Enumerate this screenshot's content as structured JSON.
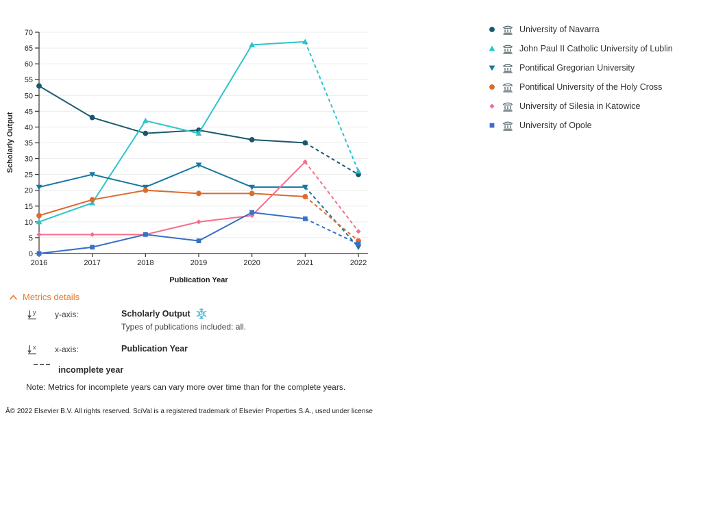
{
  "chart_data": {
    "type": "line",
    "x": [
      2016,
      2017,
      2018,
      2019,
      2020,
      2021,
      2022
    ],
    "xlabel": "Publication Year",
    "ylabel": "Scholarly Output",
    "ylim": [
      0,
      70
    ],
    "ytick_step": 5,
    "grid": "horizontal",
    "legend_position": "right",
    "incomplete_from_index": 5,
    "series": [
      {
        "name": "University of Navarra",
        "marker": "circle",
        "color": "#19586C",
        "values": [
          53,
          43,
          38,
          39,
          36,
          35,
          25
        ]
      },
      {
        "name": "John Paul II Catholic University of Lublin",
        "marker": "triangle-up",
        "color": "#2BC4CD",
        "values": [
          10,
          16,
          42,
          38,
          66,
          67,
          26
        ]
      },
      {
        "name": "Pontifical Gregorian University",
        "marker": "triangle-down",
        "color": "#1778A0",
        "values": [
          21,
          25,
          21,
          28,
          21,
          21,
          2
        ]
      },
      {
        "name": "Pontifical University of the Holy Cross",
        "marker": "circle",
        "color": "#DD6B2D",
        "values": [
          12,
          17,
          20,
          19,
          19,
          18,
          4
        ]
      },
      {
        "name": "University of Silesia in Katowice",
        "marker": "diamond",
        "color": "#F46E8E",
        "values": [
          6,
          6,
          6,
          10,
          12,
          29,
          7
        ]
      },
      {
        "name": "University of Opole",
        "marker": "square",
        "color": "#3A6FC6",
        "values": [
          0,
          2,
          6,
          4,
          13,
          11,
          3
        ]
      }
    ]
  },
  "legend": {
    "institution_icon": "institution-building-icon",
    "icon_color": "#49595F"
  },
  "metrics": {
    "title": "Metrics details",
    "accent_color": "#E8772E",
    "y_axis_label": "y-axis:",
    "y_axis_value": "Scholarly Output",
    "y_axis_metric_icon": "snowball-metric-icon",
    "metric_icon_color": "#54BFE4",
    "y_axis_sub": "Types of publications included: all.",
    "x_axis_label": "x-axis:",
    "x_axis_value": "Publication Year",
    "incomplete_label": "incomplete year",
    "note": "Note: Metrics for incomplete years can vary more over time than for the complete years."
  },
  "footer": {
    "copyright": "Â© 2022 Elsevier B.V. All rights reserved. SciVal is a registered trademark of Elsevier Properties S.A., used under license"
  }
}
